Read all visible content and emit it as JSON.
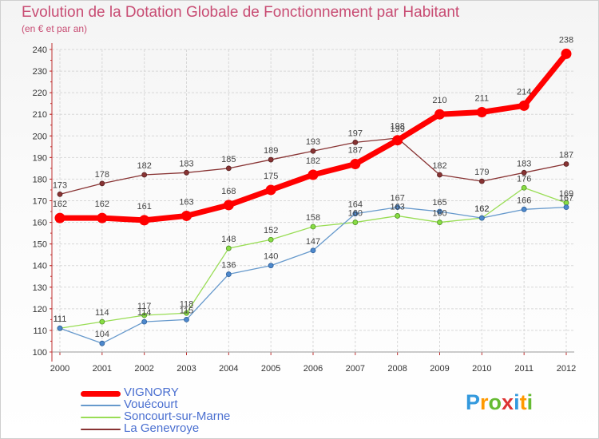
{
  "header": {
    "title": "Evolution de la Dotation Globale de Fonctionnement par Habitant",
    "subtitle": "(en € et par an)"
  },
  "chart_data": {
    "type": "line",
    "title": "Evolution de la Dotation Globale de Fonctionnement par Habitant",
    "subtitle": "(en € et par an)",
    "xlabel": "",
    "ylabel": "",
    "x": [
      "2000",
      "2001",
      "2002",
      "2003",
      "2004",
      "2005",
      "2006",
      "2007",
      "2008",
      "2009",
      "2010",
      "2011",
      "2012"
    ],
    "ylim": [
      100,
      240
    ],
    "yticks": [
      100,
      110,
      120,
      130,
      140,
      150,
      160,
      170,
      180,
      190,
      200,
      210,
      220,
      230,
      240
    ],
    "grid": true,
    "legend_position": "bottom-left",
    "series": [
      {
        "name": "VIGNORY",
        "color": "#ff0000",
        "values": [
          162,
          162,
          161,
          163,
          168,
          175,
          182,
          187,
          198,
          210,
          211,
          214,
          238
        ]
      },
      {
        "name": "Vouécourt",
        "color": "#6699cc",
        "values": [
          111,
          104,
          114,
          115,
          136,
          140,
          147,
          164,
          167,
          165,
          162,
          166,
          167
        ]
      },
      {
        "name": "Soncourt-sur-Marne",
        "color": "#99dd55",
        "values": [
          111,
          114,
          117,
          118,
          148,
          152,
          158,
          160,
          163,
          160,
          162,
          176,
          169
        ]
      },
      {
        "name": "La Genevroye",
        "color": "#883333",
        "values": [
          173,
          178,
          182,
          183,
          185,
          189,
          193,
          197,
          199,
          182,
          179,
          183,
          187
        ]
      }
    ]
  },
  "logo": {
    "letters": [
      "P",
      "r",
      "o",
      "x",
      "i",
      "t",
      "i"
    ],
    "colors": [
      "#3399dd",
      "#ff9900",
      "#66bb33",
      "#dd3333",
      "#3399dd",
      "#ff9900",
      "#66bb33"
    ]
  }
}
